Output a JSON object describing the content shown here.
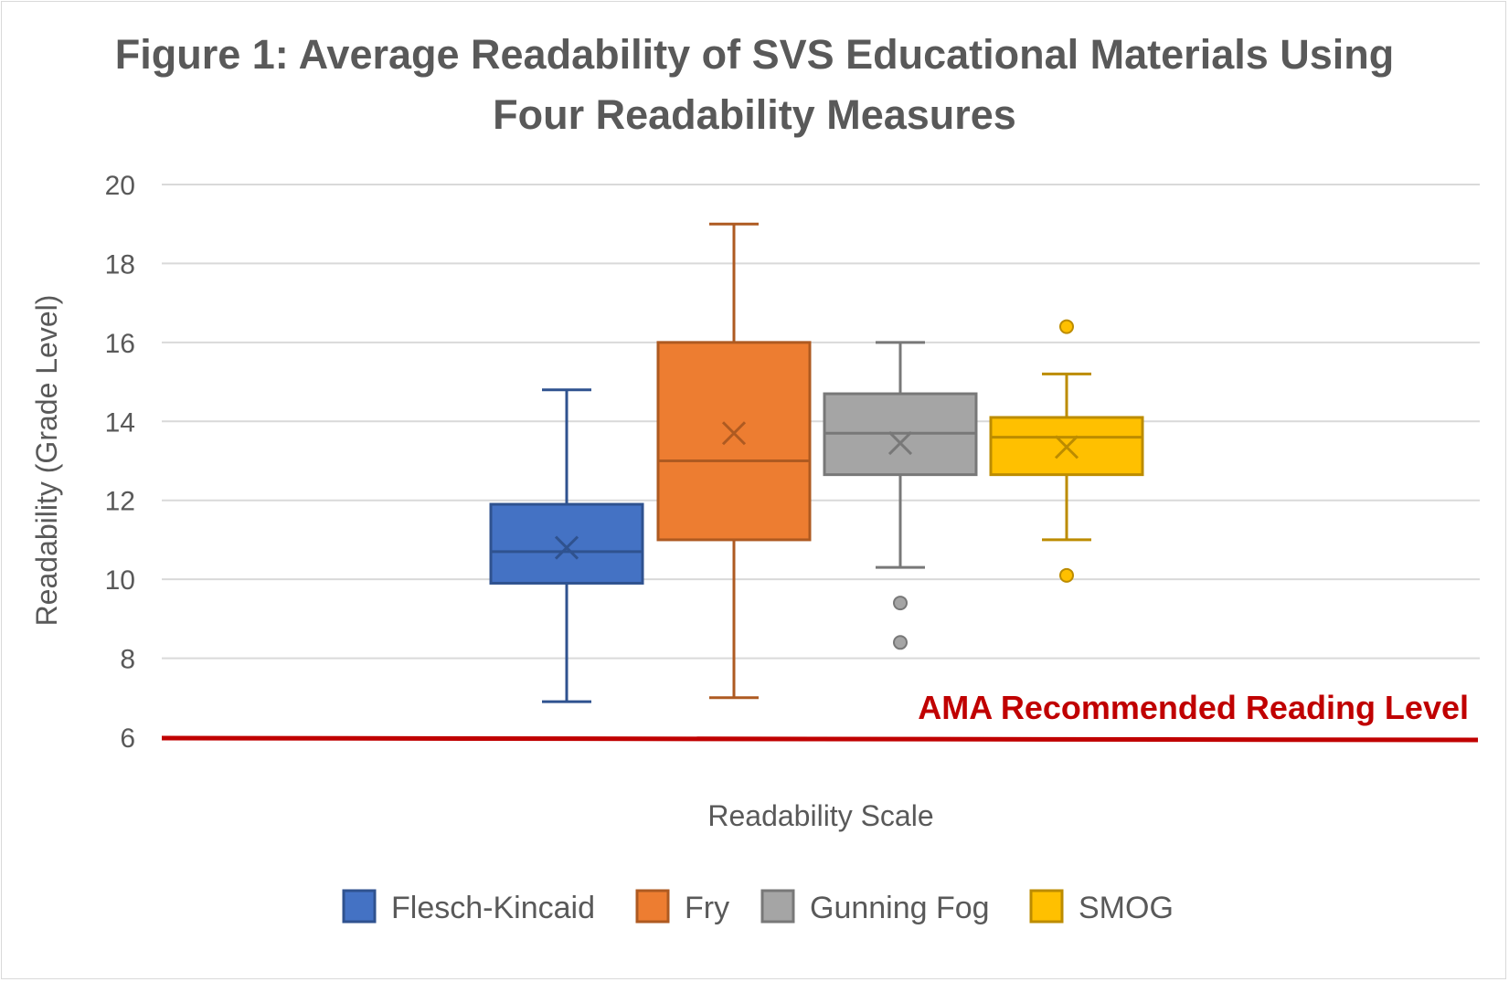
{
  "chart_data": {
    "type": "boxplot",
    "title_lines": [
      "Figure 1: Average Readability of SVS Educational Materials Using",
      "Four Readability Measures"
    ],
    "xlabel": "Readability Scale",
    "ylabel": "Readability (Grade Level)",
    "ylim": [
      6,
      20
    ],
    "yticks": [
      "6",
      "8",
      "10",
      "12",
      "14",
      "16",
      "18",
      "20"
    ],
    "grid": "horizontal",
    "legend_position": "bottom",
    "series": [
      {
        "name": "Flesch-Kincaid",
        "color": "#4472C4",
        "edge": "#2F528F",
        "min": 6.9,
        "q1": 9.9,
        "median": 10.7,
        "q3": 11.9,
        "max": 14.8,
        "mean": 10.8,
        "outliers": []
      },
      {
        "name": "Fry",
        "color": "#ED7D31",
        "edge": "#AE5A21",
        "min": 7.0,
        "q1": 11.0,
        "median": 13.0,
        "q3": 16.0,
        "max": 19.0,
        "mean": 13.7,
        "outliers": []
      },
      {
        "name": "Gunning Fog",
        "color": "#A5A5A5",
        "edge": "#787878",
        "min": 10.3,
        "q1": 12.65,
        "median": 13.7,
        "q3": 14.7,
        "max": 16.0,
        "mean": 13.45,
        "outliers": [
          9.4,
          8.4
        ]
      },
      {
        "name": "SMOG",
        "color": "#FFC000",
        "edge": "#BC8C00",
        "min": 11.0,
        "q1": 12.65,
        "median": 13.6,
        "q3": 14.1,
        "max": 15.2,
        "mean": 13.35,
        "outliers": [
          16.4,
          10.1
        ]
      }
    ],
    "reference_line": {
      "label": "AMA Recommended Reading Level",
      "value": 6,
      "color": "#C00000"
    }
  }
}
